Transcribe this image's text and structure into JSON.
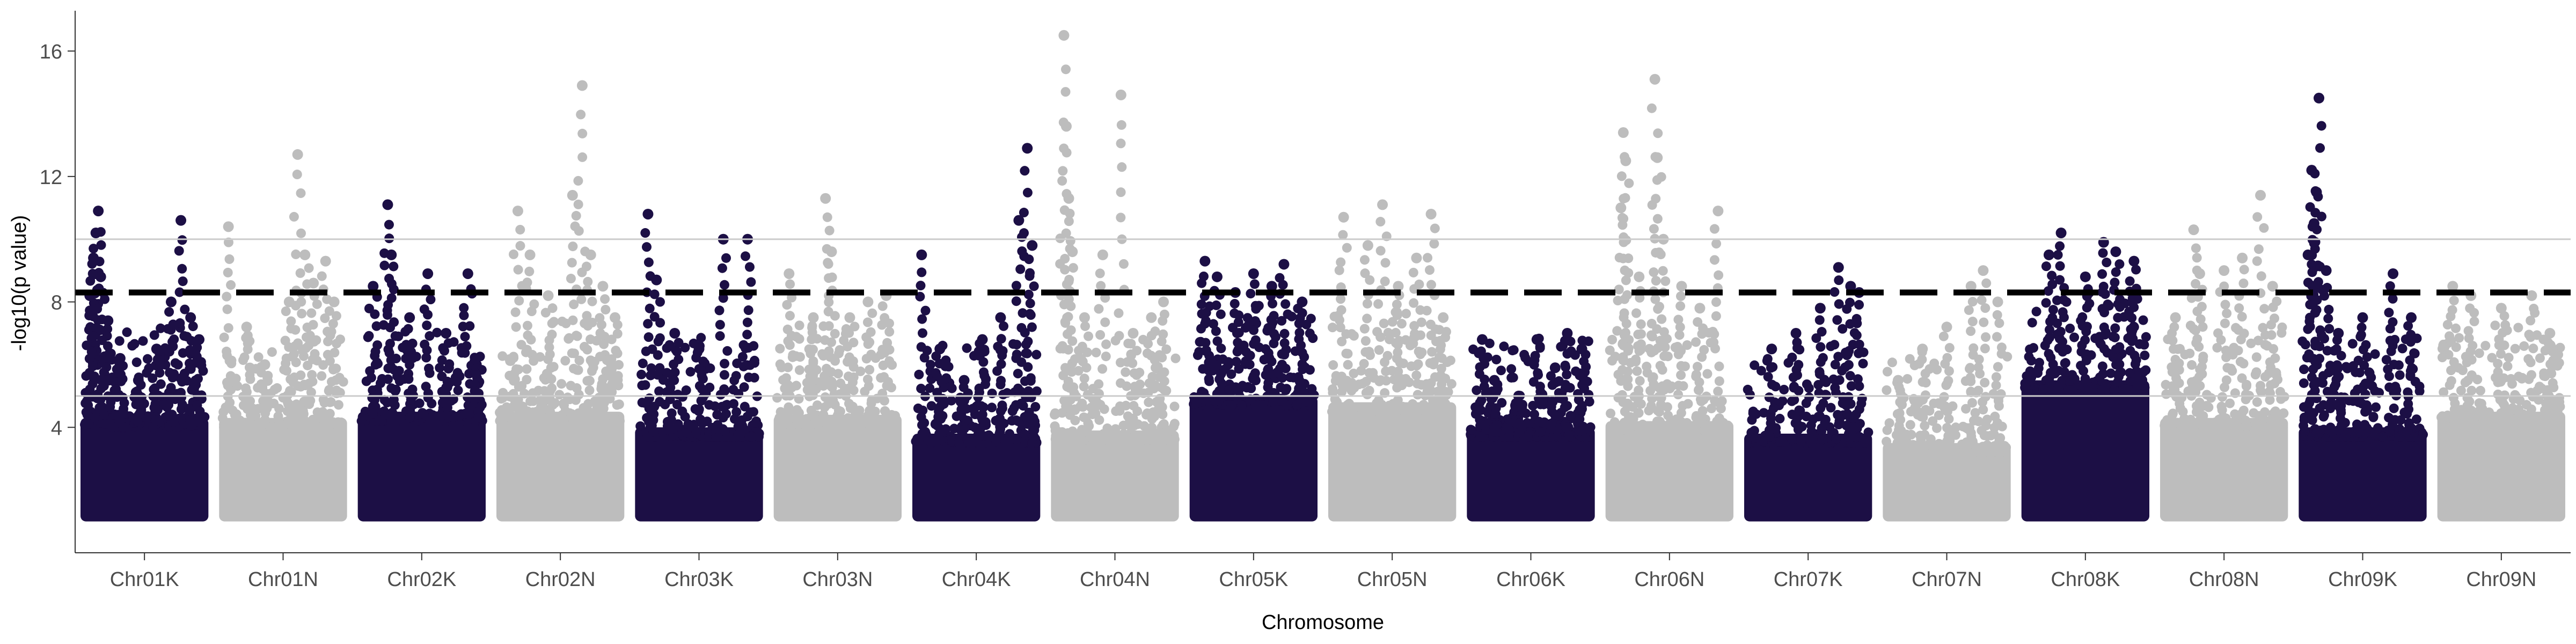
{
  "chart_data": {
    "type": "scatter",
    "subtype": "manhattan",
    "title": "",
    "xlabel": "Chromosome",
    "ylabel": "-log10(p value)",
    "ylim": [
      0,
      17.2
    ],
    "y_ticks": [
      4,
      8,
      12,
      16
    ],
    "grid": false,
    "legend": "none",
    "thresholds": [
      {
        "name": "dashed",
        "value": 8.3,
        "style": "dashed",
        "color": "#000000"
      },
      {
        "name": "upper-solid",
        "value": 10.0,
        "style": "solid",
        "color": "#cccccc"
      },
      {
        "name": "lower-solid",
        "value": 5.0,
        "style": "solid",
        "color": "#cccccc"
      }
    ],
    "colors": {
      "odd": "#1c0f45",
      "even": "#bdbdbd"
    },
    "chromosomes": [
      "Chr01K",
      "Chr01N",
      "Chr02K",
      "Chr02N",
      "Chr03K",
      "Chr03N",
      "Chr04K",
      "Chr04N",
      "Chr05K",
      "Chr05N",
      "Chr06K",
      "Chr06N",
      "Chr07K",
      "Chr07N",
      "Chr08K",
      "Chr08N",
      "Chr09K",
      "Chr09N"
    ],
    "series": [
      {
        "chromosome": "Chr01K",
        "bulk_top": 4.3,
        "peaks": [
          [
            0.12,
            10.9
          ],
          [
            0.1,
            10.2
          ],
          [
            0.08,
            9.4
          ],
          [
            0.14,
            8.8
          ],
          [
            0.05,
            8.2
          ],
          [
            0.2,
            7.4
          ],
          [
            0.3,
            6.2
          ],
          [
            0.45,
            5.5
          ],
          [
            0.6,
            6.5
          ],
          [
            0.72,
            8.0
          ],
          [
            0.8,
            10.6
          ],
          [
            0.88,
            7.5
          ],
          [
            0.95,
            6.8
          ]
        ]
      },
      {
        "chromosome": "Chr01N",
        "bulk_top": 4.3,
        "peaks": [
          [
            0.05,
            10.4
          ],
          [
            0.2,
            7.2
          ],
          [
            0.35,
            6.0
          ],
          [
            0.55,
            8.0
          ],
          [
            0.62,
            12.7
          ],
          [
            0.68,
            9.5
          ],
          [
            0.75,
            8.6
          ],
          [
            0.85,
            9.3
          ],
          [
            0.92,
            8.0
          ]
        ]
      },
      {
        "chromosome": "Chr02K",
        "bulk_top": 4.5,
        "peaks": [
          [
            0.1,
            8.5
          ],
          [
            0.22,
            11.1
          ],
          [
            0.25,
            9.5
          ],
          [
            0.4,
            7.5
          ],
          [
            0.55,
            8.9
          ],
          [
            0.7,
            7.0
          ],
          [
            0.88,
            8.9
          ],
          [
            0.95,
            6.0
          ]
        ]
      },
      {
        "chromosome": "Chr02N",
        "bulk_top": 4.5,
        "peaks": [
          [
            0.15,
            10.9
          ],
          [
            0.25,
            9.5
          ],
          [
            0.4,
            8.2
          ],
          [
            0.6,
            11.4
          ],
          [
            0.68,
            14.9
          ],
          [
            0.75,
            9.5
          ],
          [
            0.85,
            8.5
          ],
          [
            0.95,
            7.5
          ]
        ]
      },
      {
        "chromosome": "Chr03K",
        "bulk_top": 4.0,
        "peaks": [
          [
            0.08,
            10.8
          ],
          [
            0.15,
            8.7
          ],
          [
            0.3,
            7.0
          ],
          [
            0.5,
            6.5
          ],
          [
            0.7,
            10.0
          ],
          [
            0.9,
            10.0
          ]
        ]
      },
      {
        "chromosome": "Chr03N",
        "bulk_top": 4.4,
        "peaks": [
          [
            0.1,
            8.9
          ],
          [
            0.3,
            7.5
          ],
          [
            0.4,
            11.3
          ],
          [
            0.45,
            9.6
          ],
          [
            0.6,
            7.5
          ],
          [
            0.75,
            8.0
          ],
          [
            0.9,
            8.2
          ]
        ]
      },
      {
        "chromosome": "Chr04K",
        "bulk_top": 3.8,
        "peaks": [
          [
            0.05,
            9.5
          ],
          [
            0.2,
            6.5
          ],
          [
            0.4,
            5.5
          ],
          [
            0.55,
            6.8
          ],
          [
            0.7,
            7.5
          ],
          [
            0.85,
            10.6
          ],
          [
            0.92,
            12.9
          ],
          [
            0.96,
            9.8
          ]
        ]
      },
      {
        "chromosome": "Chr04N",
        "bulk_top": 3.9,
        "peaks": [
          [
            0.08,
            16.5
          ],
          [
            0.1,
            13.6
          ],
          [
            0.12,
            11.3
          ],
          [
            0.15,
            9.6
          ],
          [
            0.25,
            7.5
          ],
          [
            0.4,
            9.5
          ],
          [
            0.55,
            14.6
          ],
          [
            0.65,
            7.0
          ],
          [
            0.8,
            7.5
          ],
          [
            0.9,
            8.0
          ]
        ]
      },
      {
        "chromosome": "Chr05K",
        "bulk_top": 5.0,
        "peaks": [
          [
            0.1,
            9.3
          ],
          [
            0.2,
            8.8
          ],
          [
            0.35,
            8.3
          ],
          [
            0.5,
            8.9
          ],
          [
            0.65,
            8.5
          ],
          [
            0.75,
            9.2
          ],
          [
            0.9,
            8.0
          ]
        ]
      },
      {
        "chromosome": "Chr05N",
        "bulk_top": 4.8,
        "peaks": [
          [
            0.1,
            10.7
          ],
          [
            0.3,
            9.8
          ],
          [
            0.42,
            11.1
          ],
          [
            0.55,
            8.5
          ],
          [
            0.7,
            9.4
          ],
          [
            0.82,
            10.8
          ],
          [
            0.92,
            7.5
          ]
        ]
      },
      {
        "chromosome": "Chr06K",
        "bulk_top": 4.0,
        "peaks": [
          [
            0.1,
            6.8
          ],
          [
            0.2,
            5.5
          ],
          [
            0.4,
            5.0
          ],
          [
            0.55,
            6.8
          ],
          [
            0.7,
            5.9
          ],
          [
            0.8,
            7.0
          ],
          [
            0.92,
            6.5
          ]
        ]
      },
      {
        "chromosome": "Chr06N",
        "bulk_top": 4.2,
        "peaks": [
          [
            0.1,
            11.0
          ],
          [
            0.12,
            13.4
          ],
          [
            0.14,
            12.5
          ],
          [
            0.25,
            8.8
          ],
          [
            0.38,
            15.1
          ],
          [
            0.4,
            12.6
          ],
          [
            0.45,
            10.0
          ],
          [
            0.6,
            8.5
          ],
          [
            0.75,
            7.8
          ],
          [
            0.9,
            10.9
          ]
        ]
      },
      {
        "chromosome": "Chr07K",
        "bulk_top": 3.8,
        "peaks": [
          [
            0.2,
            6.5
          ],
          [
            0.4,
            7.0
          ],
          [
            0.6,
            7.8
          ],
          [
            0.75,
            9.1
          ],
          [
            0.85,
            8.5
          ],
          [
            0.92,
            8.3
          ]
        ]
      },
      {
        "chromosome": "Chr07N",
        "bulk_top": 3.5,
        "peaks": [
          [
            0.1,
            5.5
          ],
          [
            0.3,
            6.5
          ],
          [
            0.5,
            7.2
          ],
          [
            0.7,
            8.5
          ],
          [
            0.8,
            9.0
          ],
          [
            0.92,
            8.0
          ]
        ]
      },
      {
        "chromosome": "Chr08K",
        "bulk_top": 5.5,
        "peaks": [
          [
            0.2,
            9.5
          ],
          [
            0.3,
            10.2
          ],
          [
            0.5,
            8.8
          ],
          [
            0.65,
            9.9
          ],
          [
            0.75,
            9.6
          ],
          [
            0.9,
            9.3
          ]
        ]
      },
      {
        "chromosome": "Chr08N",
        "bulk_top": 4.3,
        "peaks": [
          [
            0.1,
            7.5
          ],
          [
            0.25,
            10.3
          ],
          [
            0.3,
            8.9
          ],
          [
            0.5,
            9.0
          ],
          [
            0.65,
            9.4
          ],
          [
            0.8,
            11.4
          ],
          [
            0.9,
            8.5
          ]
        ]
      },
      {
        "chromosome": "Chr09K",
        "bulk_top": 4.0,
        "peaks": [
          [
            0.05,
            9.5
          ],
          [
            0.08,
            12.2
          ],
          [
            0.1,
            10.5
          ],
          [
            0.12,
            11.5
          ],
          [
            0.14,
            14.5
          ],
          [
            0.2,
            9.0
          ],
          [
            0.3,
            7.0
          ],
          [
            0.5,
            7.5
          ],
          [
            0.75,
            8.9
          ],
          [
            0.9,
            7.5
          ]
        ]
      },
      {
        "chromosome": "Chr09N",
        "bulk_top": 4.5,
        "peaks": [
          [
            0.1,
            8.5
          ],
          [
            0.25,
            8.2
          ],
          [
            0.5,
            7.8
          ],
          [
            0.75,
            8.2
          ],
          [
            0.9,
            7.0
          ]
        ]
      }
    ]
  }
}
